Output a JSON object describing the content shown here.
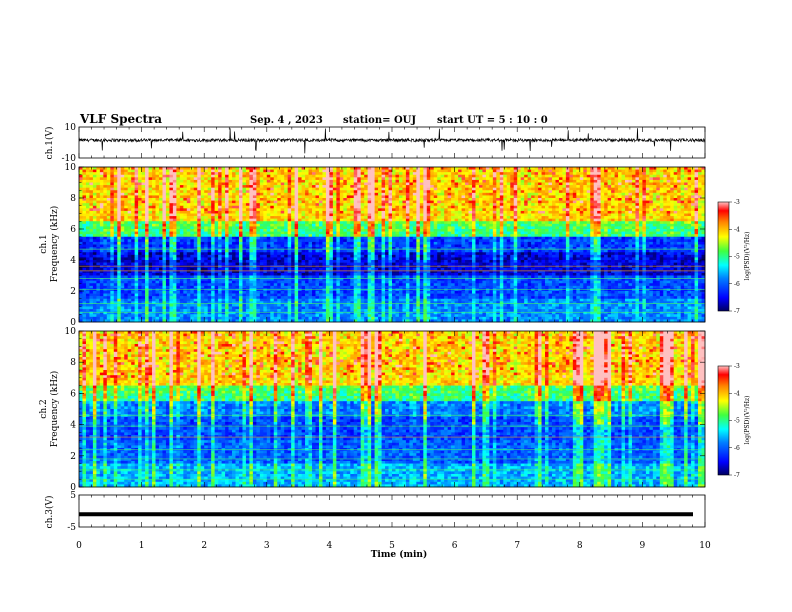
{
  "header": {
    "title": "VLF Spectra",
    "date": "Sep. 4 , 2023",
    "station": "station= OUJ",
    "start": "start  UT =  5 : 10 : 0"
  },
  "chart_data": [
    {
      "type": "line",
      "panel": "ch1-waveform",
      "ylabel": "ch.1(V)",
      "yticks": [
        "10",
        "-10"
      ],
      "ylim": [
        -10,
        10
      ],
      "xlim": [
        0,
        10
      ],
      "description_values": {
        "baseline": 1.5,
        "noise_amplitude": 1.0
      }
    },
    {
      "type": "heatmap",
      "panel": "ch1-spectrogram",
      "ylabel": "ch.1\nFrequency (kHz)",
      "ylabel_lines": [
        "ch.1",
        "Frequency (kHz)"
      ],
      "ylim": [
        0,
        10
      ],
      "yticks": [
        "0",
        "2",
        "4",
        "6",
        "8",
        "10"
      ],
      "xlim": [
        0,
        10
      ],
      "colorbar": {
        "label": "log(PSD)(V²/Hz)",
        "ticks": [
          "-3",
          "-4",
          "-5",
          "-6",
          "-7"
        ],
        "range": [
          -7,
          -3
        ]
      }
    },
    {
      "type": "heatmap",
      "panel": "ch2-spectrogram",
      "ylabel_lines": [
        "ch.2",
        "Frequency (kHz)"
      ],
      "ylim": [
        0,
        10
      ],
      "yticks": [
        "0",
        "2",
        "4",
        "6",
        "8",
        "10"
      ],
      "xlim": [
        0,
        10
      ],
      "colorbar": {
        "label": "log(PSD)(V²/Hz)",
        "ticks": [
          "-3",
          "-4",
          "-5",
          "-6",
          "-7"
        ],
        "range": [
          -7,
          -3
        ]
      }
    },
    {
      "type": "line",
      "panel": "ch3-waveform",
      "ylabel": "ch.3(V)",
      "yticks": [
        "5",
        "-5"
      ],
      "ylim": [
        -5,
        5
      ],
      "xlim": [
        0,
        10
      ],
      "description_values": {
        "baseline": -1.0
      }
    }
  ],
  "xaxis": {
    "label": "Time (min)",
    "ticks": [
      "0",
      "1",
      "2",
      "3",
      "4",
      "5",
      "6",
      "7",
      "8",
      "9",
      "10"
    ]
  },
  "colors": {
    "cmap": [
      "#000080",
      "#0000ff",
      "#00a0ff",
      "#00ffff",
      "#80ff80",
      "#ffff00",
      "#ff8000",
      "#ff0000",
      "#ffb0b0"
    ]
  }
}
